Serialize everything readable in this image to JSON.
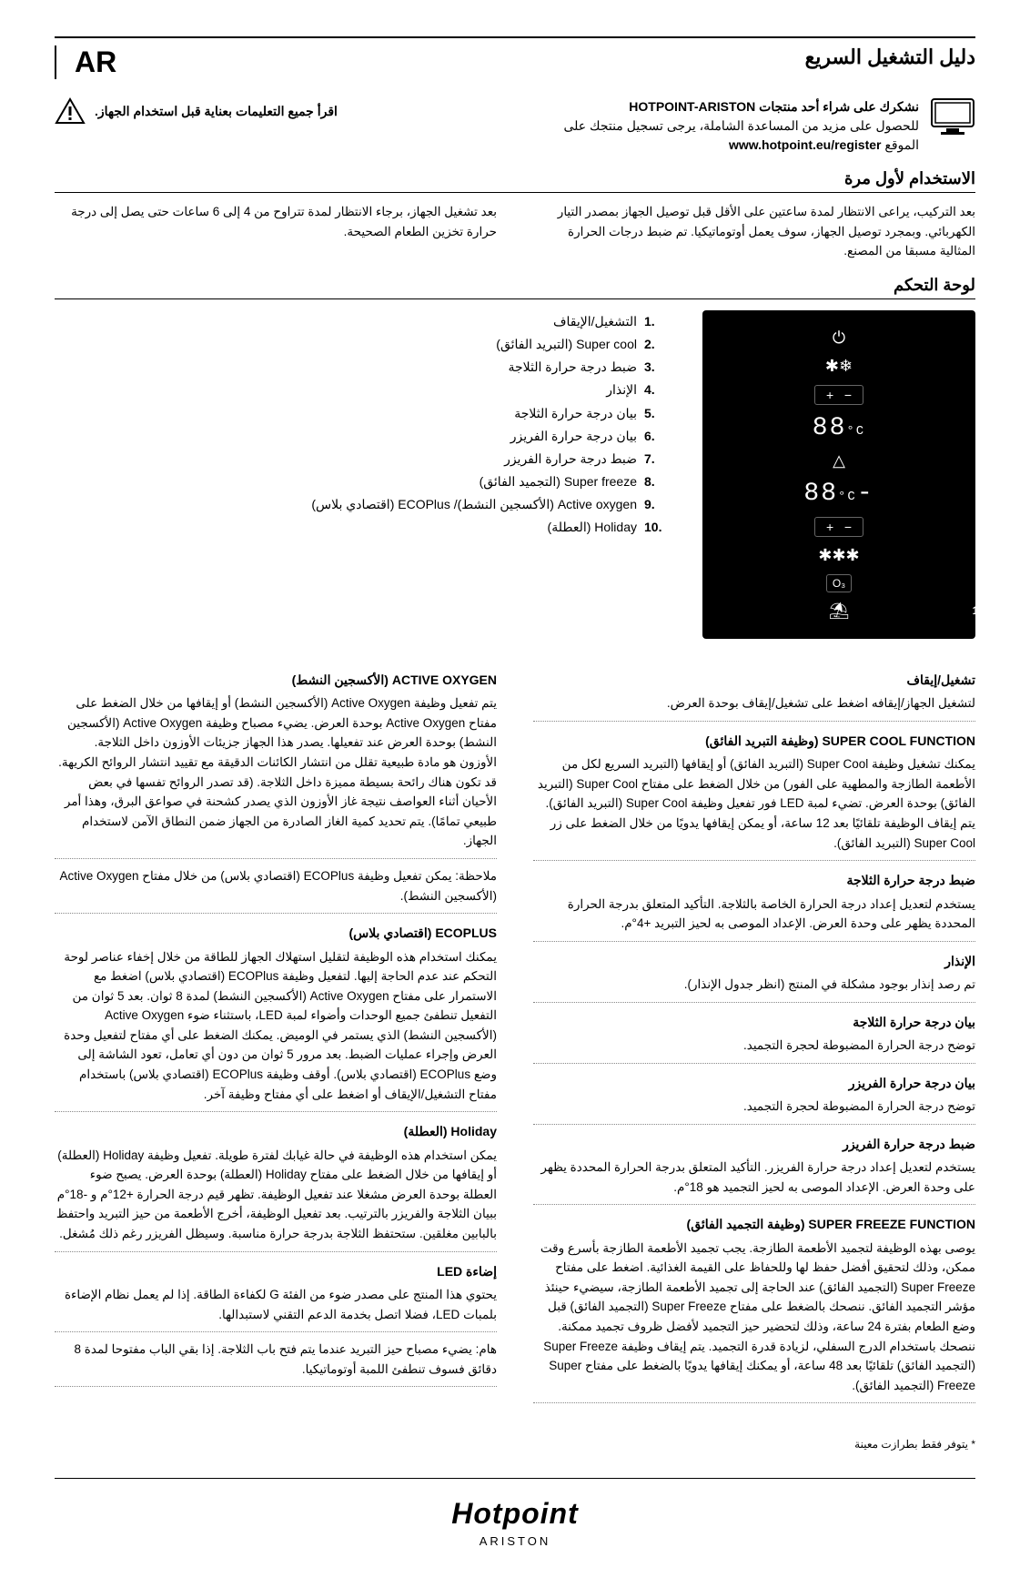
{
  "lang_code": "AR",
  "doc_title": "دليل التشغيل السريع",
  "intro": {
    "thanks": "نشكرك على شراء أحد منتجات HOTPOINT-ARISTON",
    "register_line": "للحصول على مزيد من المساعدة الشاملة، يرجى تسجيل منتجك على",
    "site_label": "الموقع",
    "site_url": "www.hotpoint.eu/register",
    "warning": "اقرأ جميع التعليمات بعناية قبل استخدام الجهاز."
  },
  "sections": {
    "first_use_heading": "الاستخدام لأول مرة",
    "first_use_right": "بعد التركيب، يراعى الانتظار لمدة ساعتين على الأقل قبل توصيل الجهاز بمصدر التيار الكهربائي. وبمجرد توصيل الجهاز، سوف يعمل أوتوماتيكيا. تم ضبط درجات الحرارة المثالية مسبقا من المصنع.",
    "first_use_left": "بعد تشغيل الجهاز، برجاء الانتظار لمدة تتراوح من 4 إلى 6 ساعات حتى يصل إلى درجة حرارة تخزين الطعام الصحيحة.",
    "panel_heading": "لوحة التحكم"
  },
  "panel": {
    "fridge_temp": "88",
    "freezer_temp": "-88",
    "unit": "°C",
    "legend": [
      {
        "n": "1.",
        "label": "التشغيل/الإيقاف"
      },
      {
        "n": "2.",
        "label": "Super cool (التبريد الفائق)"
      },
      {
        "n": "3.",
        "label": "ضبط درجة حرارة الثلاجة"
      },
      {
        "n": "4.",
        "label": "الإنذار"
      },
      {
        "n": "5.",
        "label": "بيان درجة حرارة الثلاجة"
      },
      {
        "n": "6.",
        "label": "بيان درجة حرارة الفريزر"
      },
      {
        "n": "7.",
        "label": "ضبط درجة حرارة الفريزر"
      },
      {
        "n": "8.",
        "label": "Super freeze (التجميد الفائق)"
      },
      {
        "n": "9.",
        "label": "Active oxygen (الأكسجين النشط)/ ECOPlus (اقتصادي بلاس)"
      },
      {
        "n": "10.",
        "label": "Holiday (العطلة)"
      }
    ]
  },
  "funcs_right": [
    {
      "h": "تشغيل/إيقاف",
      "t": "لتشغيل الجهاز/إيقافه اضغط على تشغيل/إيقاف بوحدة العرض."
    },
    {
      "h": "SUPER COOL FUNCTION (وظيفة التبريد الفائق)",
      "t": "يمكنك تشغيل وظيفة Super Cool (التبريد الفائق) أو إيقافها (التبريد السريع لكل من الأطعمة الطازجة والمطهية على الفور) من خلال الضغط على مفتاح Super Cool (التبريد الفائق) بوحدة العرض. تضيء لمبة LED فور تفعيل وظيفة Super Cool (التبريد الفائق). يتم إيقاف الوظيفة تلقائيًا بعد 12 ساعة، أو يمكن إيقافها يدويًا من خلال الضغط على زر Super Cool (التبريد الفائق)."
    },
    {
      "h": "ضبط درجة حرارة الثلاجة",
      "t": "يستخدم لتعديل إعداد درجة الحرارة الخاصة بالثلاجة. التأكيد المتعلق بدرجة الحرارة المحددة يظهر على وحدة العرض. الإعداد الموصى به لحيز التبريد +4°م."
    },
    {
      "h": "الإنذار",
      "t": "تم رصد إنذار بوجود مشكلة في المنتج (انظر جدول الإنذار)."
    },
    {
      "h": "بيان درجة حرارة الثلاجة",
      "t": "توضح درجة الحرارة المضبوطة لحجرة التجميد."
    },
    {
      "h": "بيان درجة حرارة الفريزر",
      "t": "توضح درجة الحرارة المضبوطة لحجرة التجميد."
    },
    {
      "h": "ضبط درجة حرارة الفريزر",
      "t": "يستخدم لتعديل إعداد درجة حرارة الفريزر. التأكيد المتعلق بدرجة الحرارة المحددة يظهر على وحدة العرض. الإعداد الموصى به لحيز التجميد هو 18°م."
    },
    {
      "h": "SUPER FREEZE FUNCTION (وظيفة التجميد الفائق)",
      "t": "يوصى بهذه الوظيفة لتجميد الأطعمة الطازجة. يجب تجميد الأطعمة الطازجة بأسرع وقت ممكن، وذلك لتحقيق أفضل حفظ لها وللحفاظ على القيمة الغذائية. اضغط على مفتاح Super Freeze (التجميد الفائق) عند الحاجة إلى تجميد الأطعمة الطازجة، سيضيء حينئذ مؤشر التجميد الفائق. ننصحك بالضغط على مفتاح Super Freeze (التجميد الفائق) قبل وضع الطعام بفترة 24 ساعة، وذلك لتحضير حيز التجميد لأفضل ظروف تجميد ممكنة. ننصحك باستخدام الدرج السفلي، لزيادة قدرة التجميد. يتم إيقاف وظيفة Super Freeze (التجميد الفائق) تلقائيًا بعد 48 ساعة، أو يمكنك إيقافها يدويًا بالضغط على مفتاح Super Freeze (التجميد الفائق)."
    }
  ],
  "funcs_left": [
    {
      "h": "ACTIVE OXYGEN (الأكسجين النشط)",
      "t": "يتم تفعيل وظيفة Active Oxygen (الأكسجين النشط) أو إيقافها من خلال الضغط على مفتاح Active Oxygen بوحدة العرض. يضيء مصباح وظيفة Active Oxygen (الأكسجين النشط) بوحدة العرض عند تفعيلها. يصدر هذا الجهاز جزيئات الأوزون داخل الثلاجة. الأوزون هو مادة طبيعية تقلل من انتشار الكائنات الدقيقة مع تقييد انتشار الروائح الكريهة. قد تكون هناك رائحة بسيطة مميزة داخل الثلاجة. (قد تصدر الروائح تفسها في بعض الأحيان أثناء العواصف نتيجة غاز الأوزون الذي يصدر كشحنة في صواعق البرق، وهذا أمر طبيعي تمامًا). يتم تحديد كمية الغاز الصادرة من الجهاز ضمن النطاق الآمن لاستخدام الجهاز."
    },
    {
      "h": "",
      "t": "ملاحظة: يمكن تفعيل وظيفة ECOPlus (اقتصادي بلاس) من خلال مفتاح Active Oxygen (الأكسجين النشط)."
    },
    {
      "h": "ECOPLUS (اقتصادي بلاس)",
      "t": "يمكنك استخدام هذه الوظيفة لتقليل استهلاك الجهاز للطاقة من خلال إخفاء عناصر لوحة التحكم عند عدم الحاجة إليها. لتفعيل وظيفة ECOPlus (اقتصادي بلاس) اضغط مع الاستمرار على مفتاح Active Oxygen (الأكسجين النشط) لمدة 8 ثوان. بعد 5 ثوان من التفعيل تنطفئ جميع الوحدات وأضواء لمبة LED، باستثناء ضوء Active Oxygen (الأكسجين النشط) الذي يستمر في الوميض. يمكنك الضغط على أي مفتاح لتفعيل وحدة العرض وإجراء عمليات الضبط. بعد مرور 5 ثوان من دون أي تعامل، تعود الشاشة إلى وضع ECOPlus (اقتصادي بلاس). أوقف وظيفة ECOPlus (اقتصادي بلاس) باستخدام مفتاح التشغيل/الإيقاف أو اضغط على أي مفتاح وظيفة آخر."
    },
    {
      "h": "Holiday (العطلة)",
      "t": "يمكن استخدام هذه الوظيفة في حالة غيابك لفترة طويلة. تفعيل وظيفة Holiday (العطلة) أو إيقافها من خلال الضغط على مفتاح Holiday (العطلة) بوحدة العرض. يصبح ضوء العطلة بوحدة العرض مشغلا عند تفعيل الوظيفة. تظهر قيم درجة الحرارة +12°م و -18°م ببيان الثلاجة والفريزر بالترتيب. بعد تفعيل الوظيفة، أخرج الأطعمة من حيز التبريد واحتفظ بالبابين مغلقين. ستحتفظ الثلاجة بدرجة حرارة مناسبة. وسيظل الفريزر رغم ذلك مُشغل."
    },
    {
      "h": "إضاءة LED",
      "t": "يحتوي هذا المنتج على مصدر ضوء من الفئة G لكفاءة الطاقة.\nإذا لم يعمل نظام الإضاءة بلمبات LED، فضلا اتصل بخدمة الدعم التقني لاستبدالها."
    },
    {
      "h": "",
      "t": "هام: يضيء مصباح حيز التبريد عندما يتم فتح باب الثلاجة. إذا بقي الباب مفتوحا لمدة 8 دقائق فسوف تنطفئ اللمبة أوتوماتيكيا."
    }
  ],
  "footer_note": "* يتوفر فقط بطرازت معينة",
  "brand": {
    "main": "Hotpoint",
    "sub": "ARISTON"
  }
}
